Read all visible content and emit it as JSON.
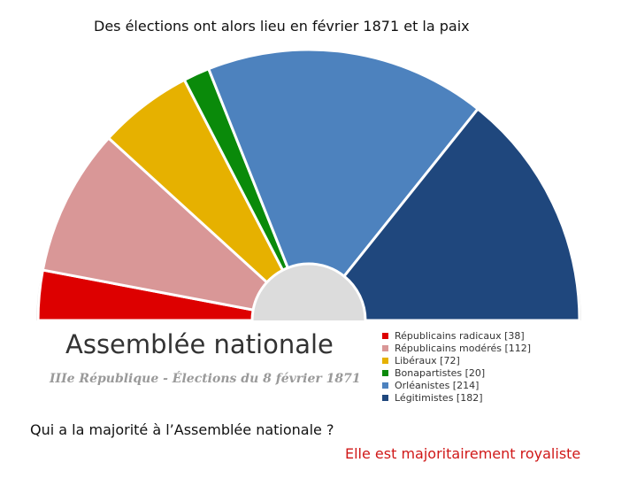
{
  "caption_top": "Des élections  ont alors lieu en février 1871 et la paix",
  "question": "Qui a la majorité à l’Assemblée nationale ?",
  "answer": "Elle est majoritairement royaliste",
  "chart_data": {
    "type": "pie",
    "subtype": "semicircle-parliament",
    "title": "Assemblée  nationale",
    "subtitle": "IIIe République - Élections du 8 février 1871",
    "legend_position": "bottom-right",
    "series": [
      {
        "name": "Républicains radicaux",
        "legend_label": "Républicains radicaux [38]",
        "value": 38,
        "color": "#dd0000"
      },
      {
        "name": "Républicains modérés",
        "legend_label": "Républicains modérés [112]",
        "value": 112,
        "color": "#d99797"
      },
      {
        "name": "Libéraux",
        "legend_label": "Libéraux [72]",
        "value": 72,
        "color": "#e6b100"
      },
      {
        "name": "Bonapartistes",
        "legend_label": "Bonapartistes [20]",
        "value": 20,
        "color": "#0a8a0a"
      },
      {
        "name": "Orléanistes",
        "legend_label": "Orléanistes [214]",
        "value": 214,
        "color": "#4d82be"
      },
      {
        "name": "Légitimistes",
        "legend_label": "Légitimistes [182]",
        "value": 182,
        "color": "#1f477d"
      }
    ]
  }
}
